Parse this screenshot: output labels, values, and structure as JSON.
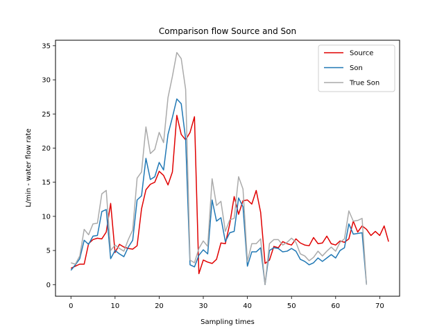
{
  "chart_data": {
    "type": "line",
    "title": "Comparison flow Source and Son",
    "xlabel": "Sampling times",
    "ylabel": "L/min - water flow rate",
    "xlim": [
      -3.5,
      74.5
    ],
    "ylim": [
      -1.7,
      35.8
    ],
    "xticks": [
      0,
      10,
      20,
      30,
      40,
      50,
      60,
      70
    ],
    "yticks": [
      0,
      5,
      10,
      15,
      20,
      25,
      30,
      35
    ],
    "grid": false,
    "legend_position": "top-right",
    "series": [
      {
        "name": "Source",
        "color": "#e00000",
        "values": [
          2.4,
          2.7,
          3.0,
          3.0,
          6.0,
          6.6,
          6.8,
          6.7,
          7.7,
          11.9,
          4.7,
          5.9,
          5.5,
          5.3,
          5.2,
          5.7,
          11.1,
          13.9,
          14.7,
          15.0,
          16.6,
          16.0,
          14.6,
          16.5,
          24.8,
          22.0,
          21.2,
          22.3,
          24.6,
          1.6,
          3.6,
          3.3,
          3.1,
          3.7,
          6.1,
          6.0,
          8.9,
          12.9,
          10.3,
          12.3,
          12.4,
          11.8,
          13.8,
          10.6,
          3.1,
          3.6,
          5.6,
          5.4,
          6.3,
          6.0,
          5.8,
          6.7,
          6.1,
          5.8,
          5.7,
          6.9,
          6.0,
          6.1,
          7.1,
          6.0,
          5.8,
          6.4,
          6.2,
          6.7,
          9.3,
          7.7,
          8.6,
          8.1,
          7.2,
          7.8,
          7.2,
          8.6,
          6.3
        ]
      },
      {
        "name": "Son",
        "color": "#1f77b4",
        "values": [
          2.1,
          2.9,
          3.8,
          6.5,
          5.9,
          7.1,
          7.2,
          10.7,
          11.0,
          3.8,
          5.0,
          4.5,
          4.1,
          5.5,
          6.5,
          12.4,
          13.0,
          18.5,
          15.4,
          15.8,
          17.9,
          16.8,
          22.0,
          24.5,
          27.2,
          26.5,
          21.3,
          2.9,
          2.6,
          4.3,
          5.1,
          4.5,
          12.4,
          9.3,
          9.8,
          6.3,
          7.6,
          7.8,
          12.7,
          11.4,
          2.7,
          4.8,
          4.8,
          5.4,
          0.0,
          5.0,
          5.4,
          5.3,
          4.8,
          4.9,
          5.3,
          4.9,
          3.7,
          3.4,
          2.9,
          3.2,
          3.9,
          3.4,
          3.9,
          4.4,
          3.9,
          5.0,
          5.4,
          8.9,
          7.4,
          7.5,
          7.6,
          0.0
        ]
      },
      {
        "name": "True Son",
        "color": "#aaaaaa",
        "values": [
          3.2,
          3.0,
          4.2,
          8.1,
          7.3,
          8.9,
          9.0,
          13.3,
          13.8,
          5.0,
          5.8,
          5.3,
          4.9,
          6.6,
          8.0,
          15.6,
          16.5,
          23.1,
          19.2,
          19.8,
          22.3,
          20.8,
          27.4,
          30.5,
          34.0,
          33.1,
          28.6,
          3.6,
          3.2,
          5.3,
          6.4,
          5.6,
          15.5,
          11.6,
          12.2,
          7.8,
          9.5,
          9.7,
          15.8,
          14.0,
          3.4,
          6.0,
          6.0,
          6.7,
          0.0,
          6.0,
          6.6,
          6.6,
          5.8,
          6.2,
          6.8,
          6.2,
          4.5,
          4.2,
          3.5,
          4.0,
          4.9,
          4.2,
          4.9,
          5.5,
          4.9,
          6.2,
          6.7,
          10.8,
          9.3,
          9.4,
          9.7,
          0.0
        ]
      }
    ]
  }
}
